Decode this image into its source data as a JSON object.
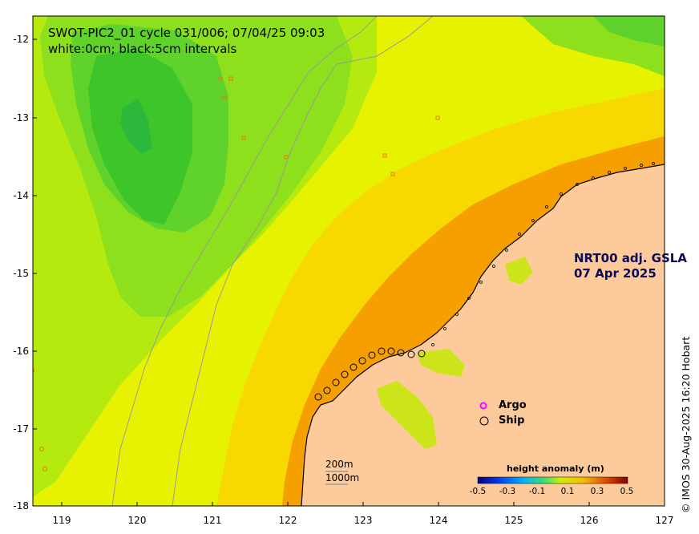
{
  "title_line1": "SWOT-PIC2_01 cycle 031/006; 07/04/25 09:03",
  "title_line2": "white:0cm; black:5cm intervals",
  "product_line1": "NRT00 adj. GSLA",
  "product_line2": "07 Apr 2025",
  "legend": {
    "argo": "Argo",
    "ship": "Ship",
    "argo_color": "#ff00ff"
  },
  "scale_bar": {
    "label_200": "200m",
    "label_1000": "1000m"
  },
  "colorbar": {
    "title": "height anomaly (m)",
    "ticks": [
      "-0.5",
      "-0.3",
      "-0.1",
      "0.1",
      "0.3",
      "0.5"
    ]
  },
  "credit": "© IMOS 30-Aug-2025 16:20 Hobart",
  "axes": {
    "y_ticks": [
      "-12",
      "-13",
      "-14",
      "-15",
      "-16",
      "-17",
      "-18"
    ],
    "x_ticks": [
      "119",
      "120",
      "121",
      "122",
      "123",
      "124",
      "125",
      "126",
      "127"
    ]
  },
  "colors": {
    "land": "#fdcb9b",
    "high_anom": "#f5a000",
    "mid_anom": "#f7d800",
    "low_anom": "#e6f200",
    "neg_anom": "#6ad42a"
  }
}
